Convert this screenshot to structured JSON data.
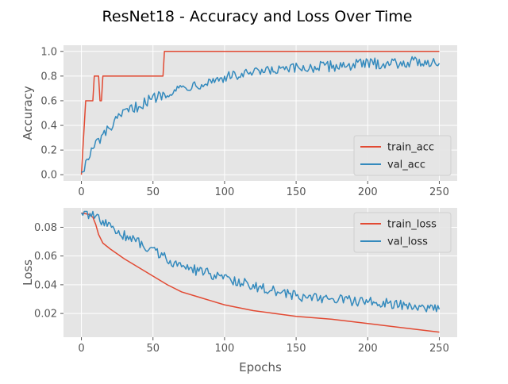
{
  "figure_title": "ResNet18 - Accuracy and Loss Over Time",
  "colors": {
    "train": "#e24a33",
    "val": "#348abd",
    "panel_bg": "#e5e5e5",
    "grid": "#ffffff",
    "tick": "#555555"
  },
  "chart_data": [
    {
      "type": "line",
      "title": "",
      "xlabel": "",
      "ylabel": "Accuracy",
      "xlim": [
        -12.5,
        262.5
      ],
      "ylim": [
        -0.05,
        1.05
      ],
      "xticks": [
        0,
        50,
        100,
        150,
        200,
        250
      ],
      "yticks": [
        0.0,
        0.2,
        0.4,
        0.6,
        0.8,
        1.0
      ],
      "ytick_labels": [
        "0.0",
        "0.2",
        "0.4",
        "0.6",
        "0.8",
        "1.0"
      ],
      "grid": true,
      "legend_position": "bottom-right",
      "series": [
        {
          "name": "train_acc",
          "color": "#e24a33",
          "points": [
            [
              0,
              0.0
            ],
            [
              1,
              0.2
            ],
            [
              2,
              0.4
            ],
            [
              3,
              0.6
            ],
            [
              8,
              0.6
            ],
            [
              9,
              0.8
            ],
            [
              12,
              0.8
            ],
            [
              13,
              0.6
            ],
            [
              14,
              0.6
            ],
            [
              15,
              0.8
            ],
            [
              57,
              0.8
            ],
            [
              58,
              1.0
            ],
            [
              250,
              1.0
            ]
          ]
        },
        {
          "name": "val_acc",
          "color": "#348abd",
          "trend": [
            [
              0,
              0.02
            ],
            [
              10,
              0.25
            ],
            [
              20,
              0.38
            ],
            [
              30,
              0.5
            ],
            [
              40,
              0.56
            ],
            [
              50,
              0.62
            ],
            [
              60,
              0.67
            ],
            [
              75,
              0.72
            ],
            [
              90,
              0.76
            ],
            [
              100,
              0.79
            ],
            [
              125,
              0.83
            ],
            [
              150,
              0.86
            ],
            [
              175,
              0.88
            ],
            [
              200,
              0.9
            ],
            [
              225,
              0.91
            ],
            [
              250,
              0.92
            ]
          ],
          "noise": 0.045,
          "clip": [
            0.0,
            0.96
          ]
        }
      ]
    },
    {
      "type": "line",
      "title": "",
      "xlabel": "Epochs",
      "ylabel": "Loss",
      "xlim": [
        -12.5,
        262.5
      ],
      "ylim": [
        0.0035,
        0.0935
      ],
      "xticks": [
        0,
        50,
        100,
        150,
        200,
        250
      ],
      "yticks": [
        0.02,
        0.04,
        0.06,
        0.08
      ],
      "ytick_labels": [
        "0.02",
        "0.04",
        "0.06",
        "0.08"
      ],
      "grid": true,
      "legend_position": "top-right",
      "series": [
        {
          "name": "train_loss",
          "color": "#e24a33",
          "points": [
            [
              0,
              0.09
            ],
            [
              5,
              0.089
            ],
            [
              8,
              0.087
            ],
            [
              10,
              0.082
            ],
            [
              12,
              0.075
            ],
            [
              15,
              0.069
            ],
            [
              20,
              0.065
            ],
            [
              30,
              0.058
            ],
            [
              40,
              0.052
            ],
            [
              50,
              0.046
            ],
            [
              60,
              0.04
            ],
            [
              70,
              0.035
            ],
            [
              80,
              0.032
            ],
            [
              90,
              0.029
            ],
            [
              100,
              0.026
            ],
            [
              120,
              0.022
            ],
            [
              150,
              0.018
            ],
            [
              175,
              0.016
            ],
            [
              200,
              0.013
            ],
            [
              225,
              0.01
            ],
            [
              250,
              0.007
            ]
          ]
        },
        {
          "name": "val_loss",
          "color": "#348abd",
          "trend": [
            [
              0,
              0.09
            ],
            [
              8,
              0.089
            ],
            [
              15,
              0.083
            ],
            [
              25,
              0.077
            ],
            [
              35,
              0.072
            ],
            [
              45,
              0.067
            ],
            [
              55,
              0.061
            ],
            [
              65,
              0.055
            ],
            [
              80,
              0.05
            ],
            [
              100,
              0.045
            ],
            [
              125,
              0.038
            ],
            [
              150,
              0.032
            ],
            [
              175,
              0.03
            ],
            [
              200,
              0.028
            ],
            [
              225,
              0.026
            ],
            [
              250,
              0.024
            ]
          ],
          "noise": 0.0035,
          "clip": [
            0.019,
            0.091
          ]
        }
      ]
    }
  ]
}
